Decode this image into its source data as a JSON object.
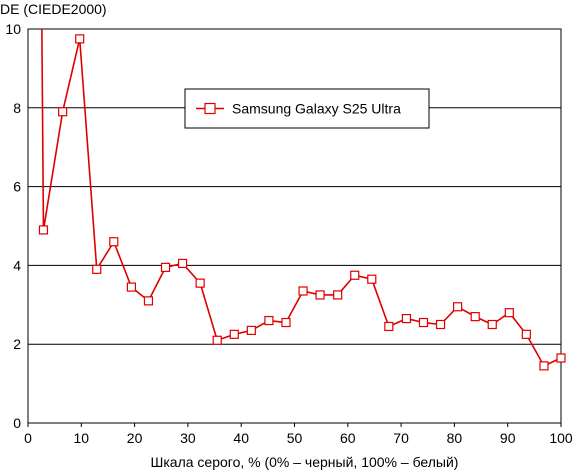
{
  "chart_data": {
    "type": "line",
    "title": "",
    "ylabel": "DE (CIEDE2000)",
    "xlabel": "Шкала серого, % (0% – черный, 100% – белый)",
    "xlim": [
      0,
      100
    ],
    "ylim": [
      0,
      10
    ],
    "x_ticks": [
      0,
      10,
      20,
      30,
      40,
      50,
      60,
      70,
      80,
      90,
      100
    ],
    "y_ticks": [
      0,
      2,
      4,
      6,
      8,
      10
    ],
    "grid": "horizontal",
    "legend_position": "top-center",
    "series": [
      {
        "name": "Samsung Galaxy S25 Ultra",
        "color": "#e00000",
        "marker": "square-open",
        "x": [
          2.6,
          2.9,
          6.5,
          9.7,
          12.9,
          16.1,
          19.4,
          22.6,
          25.8,
          29.0,
          32.3,
          35.5,
          38.7,
          41.9,
          45.2,
          48.4,
          51.6,
          54.8,
          58.1,
          61.3,
          64.5,
          67.7,
          71.0,
          74.2,
          77.4,
          80.6,
          83.9,
          87.1,
          90.3,
          93.5,
          96.8,
          100.0
        ],
        "y": [
          10.0,
          4.9,
          7.9,
          9.75,
          3.9,
          4.6,
          3.45,
          3.1,
          3.95,
          4.05,
          3.55,
          2.1,
          2.25,
          2.35,
          2.6,
          2.55,
          3.35,
          3.25,
          3.25,
          3.75,
          3.65,
          2.45,
          2.65,
          2.55,
          2.5,
          2.95,
          2.7,
          2.5,
          2.8,
          2.25,
          1.45,
          1.65
        ]
      }
    ]
  }
}
